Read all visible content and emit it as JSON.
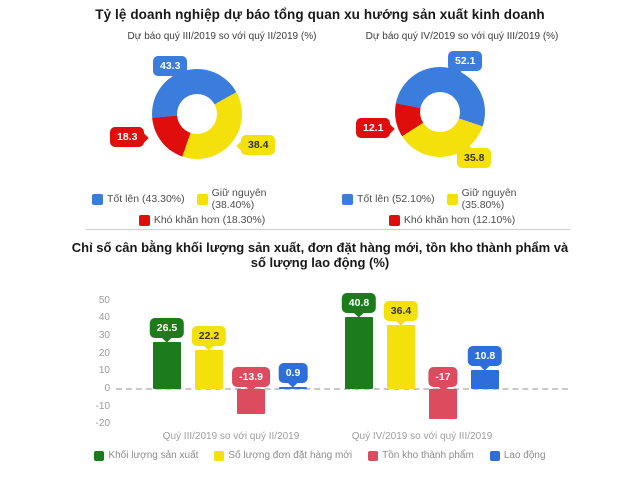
{
  "section1": {
    "title": "Tỷ lệ doanh nghiệp dự báo tổng quan xu hướng sản xuất kinh doanh"
  },
  "section2": {
    "title_line1": "Chỉ số cân bằng khối lượng sản xuất, đơn đặt hàng mới, tồn kho thành phẩm và",
    "title_line2": "số lượng lao động (%)"
  },
  "chart_data": [
    {
      "type": "pie",
      "title": "Dự báo quý III/2019 so với quý II/2019 (%)",
      "labels": [
        "Tốt lên",
        "Giữ nguyên",
        "Khó khăn hơn"
      ],
      "values": [
        43.3,
        38.4,
        18.3
      ],
      "value_labels": [
        "43.3",
        "38.4",
        "18.3"
      ],
      "legend": [
        "Tốt lên (43.30%)",
        "Giữ nguyên (38.40%)",
        "Khó khăn hơn (18.30%)"
      ],
      "colors": [
        "#3b7ddc",
        "#f4e00a",
        "#e00d0d"
      ],
      "text_colors": [
        "#ffffff",
        "#333333",
        "#ffffff"
      ],
      "start_angle": 265,
      "donut_hole": 0.44,
      "legend_position": "bottom"
    },
    {
      "type": "pie",
      "title": "Dự báo quý IV/2019 so với quý III/2019 (%)",
      "labels": [
        "Tốt lên",
        "Giữ nguyên",
        "Khó khăn hơn"
      ],
      "values": [
        52.1,
        35.8,
        12.1
      ],
      "value_labels": [
        "52.1",
        "35.8",
        "12.1"
      ],
      "legend": [
        "Tốt lên (52.10%)",
        "Giữ nguyên (35.80%)",
        "Khó khăn hơn (12.10%)"
      ],
      "colors": [
        "#3b7ddc",
        "#f4e00a",
        "#e00d0d"
      ],
      "text_colors": [
        "#ffffff",
        "#333333",
        "#ffffff"
      ],
      "start_angle": 281,
      "donut_hole": 0.44,
      "legend_position": "bottom"
    },
    {
      "type": "bar",
      "categories": [
        "Quý III/2019 so với quý II/2019",
        "Quý IV/2019 so với quý III/2019"
      ],
      "series": [
        {
          "name": "Khối lượng sản xuất",
          "color": "#1c7c1c",
          "text_color": "#ffffff",
          "values": [
            26.5,
            40.8
          ],
          "value_labels": [
            "26.5",
            "40.8"
          ]
        },
        {
          "name": "Số lượng đơn đặt hàng mới",
          "color": "#f4e00a",
          "text_color": "#333333",
          "values": [
            22.2,
            36.4
          ],
          "value_labels": [
            "22.2",
            "36.4"
          ]
        },
        {
          "name": "Tồn kho thành phẩm",
          "color": "#dc4b5e",
          "text_color": "#ffffff",
          "values": [
            -13.9,
            -17
          ],
          "value_labels": [
            "-13.9",
            "-17"
          ]
        },
        {
          "name": "Lao động",
          "color": "#2e6edb",
          "text_color": "#ffffff",
          "values": [
            0.9,
            10.8
          ],
          "value_labels": [
            "0.9",
            "10.8"
          ]
        }
      ],
      "y_ticks": [
        50,
        40,
        30,
        20,
        10,
        0,
        -10,
        -20
      ],
      "ylim": [
        -20,
        50
      ],
      "grid": "dashed-zero-line-only",
      "legend_position": "bottom"
    }
  ]
}
